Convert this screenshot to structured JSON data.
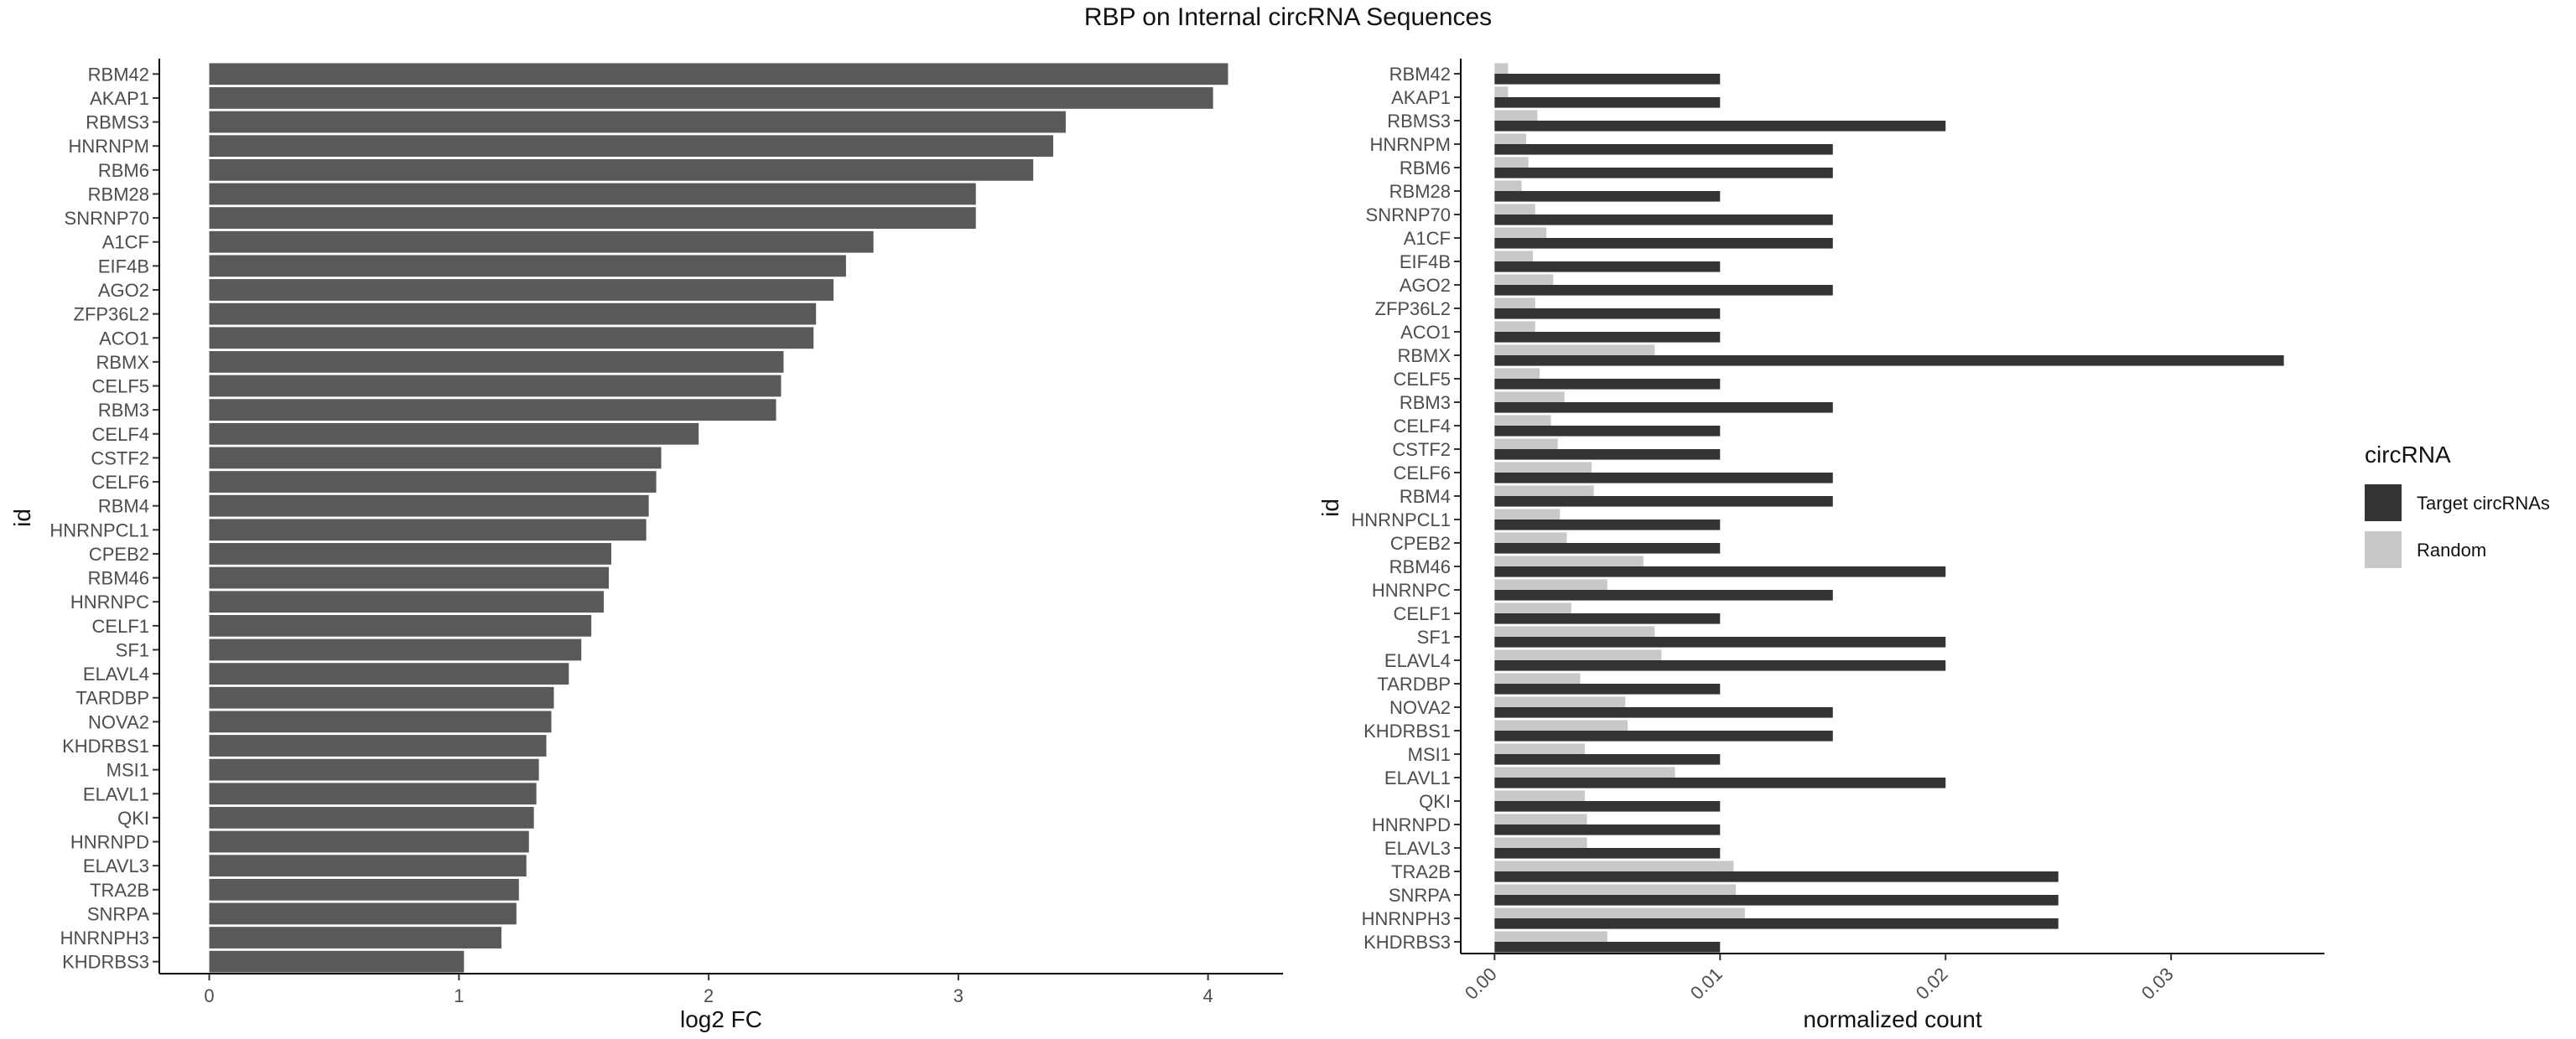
{
  "title": "RBP on Internal circRNA Sequences",
  "chart_data": [
    {
      "type": "bar",
      "orientation": "horizontal",
      "xlabel": "log2 FC",
      "ylabel": "id",
      "xlim": [
        -0.2,
        4.3
      ],
      "xticks": [
        0,
        1,
        2,
        3,
        4
      ],
      "grid": false,
      "bar_color": "#595959",
      "categories": [
        "RBM42",
        "AKAP1",
        "RBMS3",
        "HNRNPM",
        "RBM6",
        "RBM28",
        "SNRNP70",
        "A1CF",
        "EIF4B",
        "AGO2",
        "ZFP36L2",
        "ACO1",
        "RBMX",
        "CELF5",
        "RBM3",
        "CELF4",
        "CSTF2",
        "CELF6",
        "RBM4",
        "HNRNPCL1",
        "CPEB2",
        "RBM46",
        "HNRNPC",
        "CELF1",
        "SF1",
        "ELAVL4",
        "TARDBP",
        "NOVA2",
        "KHDRBS1",
        "MSI1",
        "ELAVL1",
        "QKI",
        "HNRNPD",
        "ELAVL3",
        "TRA2B",
        "SNRPA",
        "HNRNPH3",
        "KHDRBS3"
      ],
      "values": [
        4.08,
        4.02,
        3.43,
        3.38,
        3.3,
        3.07,
        3.07,
        2.66,
        2.55,
        2.5,
        2.43,
        2.42,
        2.3,
        2.29,
        2.27,
        1.96,
        1.81,
        1.79,
        1.76,
        1.75,
        1.61,
        1.6,
        1.58,
        1.53,
        1.49,
        1.44,
        1.38,
        1.37,
        1.35,
        1.32,
        1.31,
        1.3,
        1.28,
        1.27,
        1.24,
        1.23,
        1.17,
        1.02
      ]
    },
    {
      "type": "bar",
      "orientation": "horizontal",
      "xlabel": "normalized count",
      "ylabel": "id",
      "xlim": [
        -0.0015,
        0.0368
      ],
      "xticks": [
        0.0,
        0.01,
        0.02,
        0.03
      ],
      "xtick_labels": [
        "0.00",
        "0.01",
        "0.02",
        "0.03"
      ],
      "grid": false,
      "legend": {
        "title": "circRNA",
        "placement": "right"
      },
      "categories": [
        "RBM42",
        "AKAP1",
        "RBMS3",
        "HNRNPM",
        "RBM6",
        "RBM28",
        "SNRNP70",
        "A1CF",
        "EIF4B",
        "AGO2",
        "ZFP36L2",
        "ACO1",
        "RBMX",
        "CELF5",
        "RBM3",
        "CELF4",
        "CSTF2",
        "CELF6",
        "RBM4",
        "HNRNPCL1",
        "CPEB2",
        "RBM46",
        "HNRNPC",
        "CELF1",
        "SF1",
        "ELAVL4",
        "TARDBP",
        "NOVA2",
        "KHDRBS1",
        "MSI1",
        "ELAVL1",
        "QKI",
        "HNRNPD",
        "ELAVL3",
        "TRA2B",
        "SNRPA",
        "HNRNPH3",
        "KHDRBS3"
      ],
      "series": [
        {
          "name": "Target circRNAs",
          "color": "#333333",
          "values": [
            0.01,
            0.01,
            0.02,
            0.015,
            0.015,
            0.01,
            0.015,
            0.015,
            0.01,
            0.015,
            0.01,
            0.01,
            0.035,
            0.01,
            0.015,
            0.01,
            0.01,
            0.015,
            0.015,
            0.01,
            0.01,
            0.02,
            0.015,
            0.01,
            0.02,
            0.02,
            0.01,
            0.015,
            0.015,
            0.01,
            0.02,
            0.01,
            0.01,
            0.01,
            0.025,
            0.025,
            0.025,
            0.01
          ]
        },
        {
          "name": "Random",
          "color": "#c8c8c8",
          "values": [
            0.0006,
            0.0006,
            0.0019,
            0.0014,
            0.0015,
            0.0012,
            0.0018,
            0.0023,
            0.0017,
            0.0026,
            0.0018,
            0.0018,
            0.0071,
            0.002,
            0.0031,
            0.0025,
            0.0028,
            0.0043,
            0.0044,
            0.0029,
            0.0032,
            0.0066,
            0.005,
            0.0034,
            0.0071,
            0.0074,
            0.0038,
            0.0058,
            0.0059,
            0.004,
            0.008,
            0.004,
            0.0041,
            0.0041,
            0.0106,
            0.0107,
            0.0111,
            0.005
          ]
        }
      ]
    }
  ]
}
